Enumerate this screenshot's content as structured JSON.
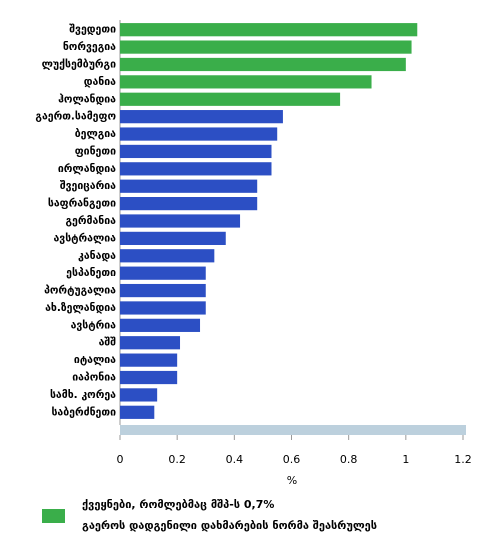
{
  "chart_data": {
    "type": "hbar",
    "categories": [
      "შვედეთი",
      "ნორვეგია",
      "ლუქსემბურგი",
      "დანია",
      "ჰოლანდია",
      "გაერთ.სამეფო",
      "ბელგია",
      "ფინეთი",
      "ირლანდია",
      "შვეიცარია",
      "საფრანგეთი",
      "გერმანია",
      "ავსტრალია",
      "კანადა",
      "ესპანეთი",
      "პორტუგალია",
      "ახ.ზელანდია",
      "ავსტრია",
      "აშშ",
      "იტალია",
      "იაპონია",
      "სამხ. კორეა",
      "საბერძნეთი"
    ],
    "series": [
      {
        "name": "ქვეყნები, რომლებმაც მშპ-ს 0,7% გაეროს დადგენილი დახმარების ნორმა შეასრულეს",
        "color": "#3aae4a",
        "values": [
          1.04,
          1.02,
          1.0,
          0.88,
          0.77,
          null,
          null,
          null,
          null,
          null,
          null,
          null,
          null,
          null,
          null,
          null,
          null,
          null,
          null,
          null,
          null,
          null,
          null
        ]
      },
      {
        "color": "#2c4fc4",
        "values": [
          null,
          null,
          null,
          null,
          null,
          0.57,
          0.55,
          0.53,
          0.53,
          0.48,
          0.48,
          0.42,
          0.37,
          0.33,
          0.3,
          0.3,
          0.3,
          0.28,
          0.21,
          0.2,
          0.2,
          0.13,
          0.12
        ]
      }
    ],
    "xlabel": "%",
    "xlim": [
      0,
      1.2
    ],
    "xticks": [
      0,
      0.2,
      0.4,
      0.6,
      0.8,
      1,
      1.2
    ]
  }
}
